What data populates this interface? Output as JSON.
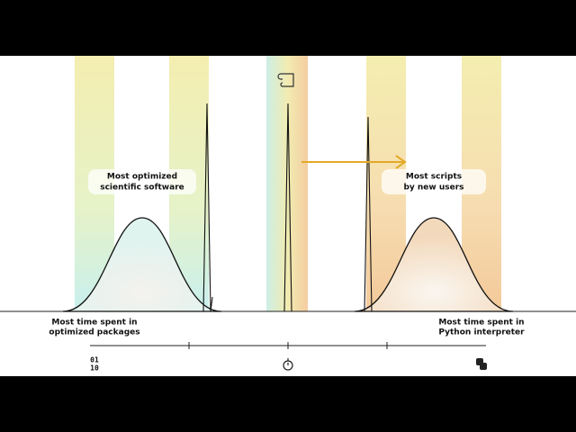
{
  "labels": {
    "left_peak": [
      "Most optimized",
      "scientific software"
    ],
    "right_peak": [
      "Most scripts",
      "by new users"
    ],
    "axis_left": [
      "Most time spent in",
      "optimized packages"
    ],
    "axis_right": [
      "Most time spent in",
      "Python interpreter"
    ]
  },
  "icons": {
    "binary": [
      "01",
      "10"
    ]
  }
}
